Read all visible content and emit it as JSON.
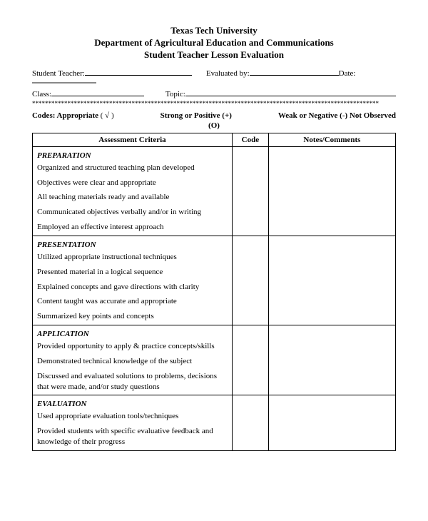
{
  "header": {
    "line1": "Texas Tech University",
    "line2": "Department of Agricultural Education and Communications",
    "line3": "Student Teacher Lesson Evaluation"
  },
  "form": {
    "student_teacher_label": "Student Teacher:",
    "evaluated_by_label": "Evaluated by:",
    "date_label": "Date:",
    "class_label": "Class:",
    "topic_label": "Topic:"
  },
  "codes": {
    "label": "Codes: Appropriate",
    "check": "( √ )",
    "strong": "Strong or Positive (+)",
    "weak": "Weak or Negative (-) Not Observed",
    "observed": "(O)"
  },
  "table": {
    "headers": {
      "criteria": "Assessment Criteria",
      "code": "Code",
      "notes": "Notes/Comments"
    },
    "sections": [
      {
        "title": "PREPARATION",
        "items": [
          "Organized and structured teaching plan developed",
          "Objectives were clear and appropriate",
          "All teaching materials ready and available",
          "Communicated objectives verbally and/or in writing",
          "Employed an effective interest approach"
        ]
      },
      {
        "title": "PRESENTATION",
        "items": [
          "Utilized appropriate instructional techniques",
          "Presented material in a logical sequence",
          "Explained concepts and gave directions with clarity",
          "Content taught was accurate and appropriate",
          "Summarized key points and concepts"
        ]
      },
      {
        "title": "APPLICATION",
        "items": [
          "Provided opportunity to apply & practice concepts/skills",
          "Demonstrated technical knowledge of the subject",
          "Discussed and evaluated solutions to problems, decisions that were made, and/or study questions"
        ]
      },
      {
        "title": "EVALUATION",
        "items": [
          "Used appropriate evaluation tools/techniques",
          "Provided students with specific evaluative feedback and knowledge of their progress"
        ]
      }
    ]
  }
}
